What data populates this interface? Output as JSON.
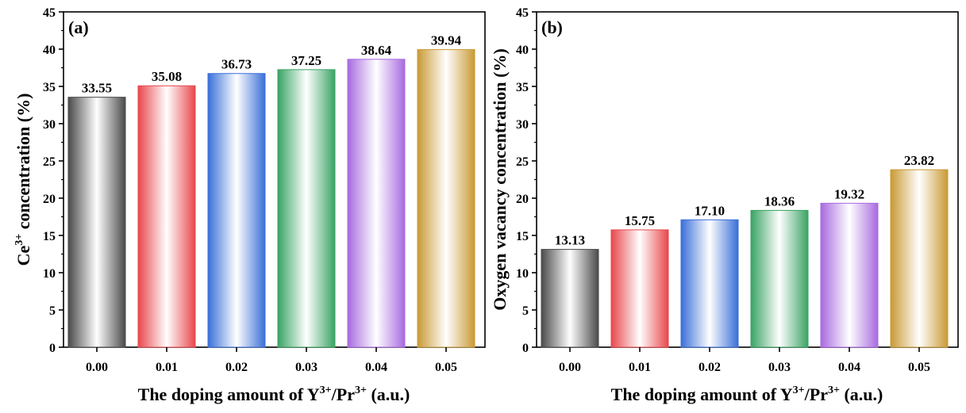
{
  "chart_data": [
    {
      "type": "bar",
      "panel_label": "(a)",
      "categories": [
        "0.00",
        "0.01",
        "0.02",
        "0.03",
        "0.04",
        "0.05"
      ],
      "values": [
        33.55,
        35.08,
        36.73,
        37.25,
        38.64,
        39.94
      ],
      "value_labels": [
        "33.55",
        "35.08",
        "36.73",
        "37.25",
        "38.64",
        "39.94"
      ],
      "xlabel": {
        "prefix": "The doping amount of Y",
        "sup1": "3+",
        "mid": "/Pr",
        "sup2": "3+",
        "suffix": " (a.u.)"
      },
      "ylabel": {
        "prefix": "Ce",
        "sup": "3+",
        "suffix": " concentration (%)"
      },
      "ylim": [
        0,
        45
      ],
      "yticks": [
        "0",
        "5",
        "10",
        "15",
        "20",
        "25",
        "30",
        "35",
        "40",
        "45"
      ],
      "grid": false
    },
    {
      "type": "bar",
      "panel_label": "(b)",
      "categories": [
        "0.00",
        "0.01",
        "0.02",
        "0.03",
        "0.04",
        "0.05"
      ],
      "values": [
        13.13,
        15.75,
        17.1,
        18.36,
        19.32,
        23.82
      ],
      "value_labels": [
        "13.13",
        "15.75",
        "17.10",
        "18.36",
        "19.32",
        "23.82"
      ],
      "xlabel": {
        "prefix": "The doping amount of Y",
        "sup1": "3+",
        "mid": "/Pr",
        "sup2": "3+",
        "suffix": " (a.u.)"
      },
      "ylabel": {
        "prefix": "",
        "sup": "",
        "suffix": "Oxygen vacancy concentration (%)"
      },
      "ylim": [
        0,
        45
      ],
      "yticks": [
        "0",
        "5",
        "10",
        "15",
        "20",
        "25",
        "30",
        "35",
        "40",
        "45"
      ],
      "grid": false
    }
  ],
  "bar_colors": [
    "#4a4a4a",
    "#e8474c",
    "#3a6fd8",
    "#3aa364",
    "#a86ae0",
    "#c99a35"
  ]
}
